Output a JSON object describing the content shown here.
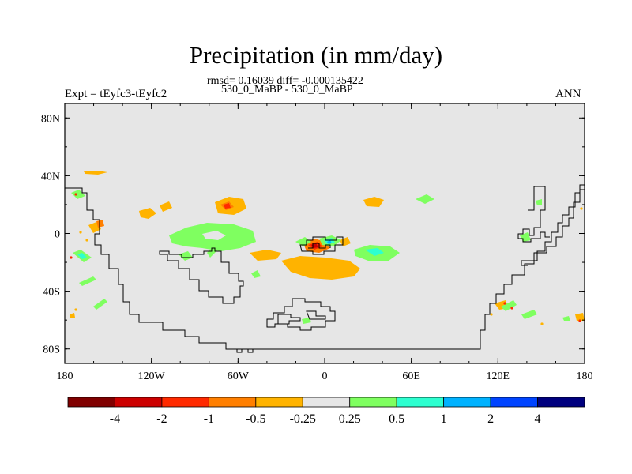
{
  "title": "Precipitation (in mm/day)",
  "stats_line": "rmsd= 0.16039 diff= -0.000135422",
  "cases_line": "530_0_MaBP - 530_0_MaBP",
  "left_label": "Expt = tEyfc3-tEyfc2",
  "right_label": "ANN",
  "colors": {
    "background_field": "#e6e6e6",
    "coastline": "#000000"
  },
  "map_data": {
    "type": "contour-fill-map",
    "lon_range": [
      -180,
      180
    ],
    "lat_range": [
      -90,
      90
    ],
    "lon_ticks": [
      {
        "value": -180,
        "label": "180"
      },
      {
        "value": -120,
        "label": "120W"
      },
      {
        "value": -60,
        "label": "60W"
      },
      {
        "value": 0,
        "label": "0"
      },
      {
        "value": 60,
        "label": "60E"
      },
      {
        "value": 120,
        "label": "120E"
      },
      {
        "value": 180,
        "label": "180"
      }
    ],
    "lat_ticks": [
      {
        "value": 80,
        "label": "80N"
      },
      {
        "value": 40,
        "label": "40N"
      },
      {
        "value": 0,
        "label": "0"
      },
      {
        "value": -40,
        "label": "40S"
      },
      {
        "value": -80,
        "label": "80S"
      }
    ]
  },
  "colorbar": {
    "colors": [
      "#800000",
      "#cc0000",
      "#ff2a00",
      "#ff7f00",
      "#ffb300",
      "#e6e6e6",
      "#7fff60",
      "#2dffd0",
      "#00b2ff",
      "#0044ff",
      "#00007f"
    ],
    "labels": [
      "-4",
      "-2",
      "-1",
      "-0.5",
      "-0.25",
      "0.25",
      "0.5",
      "1",
      "2",
      "4"
    ]
  }
}
